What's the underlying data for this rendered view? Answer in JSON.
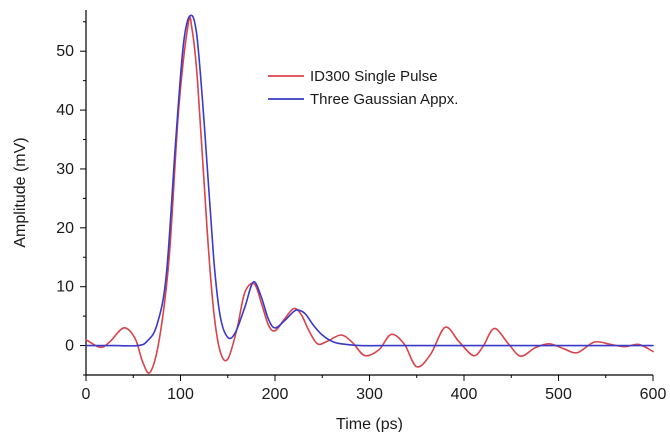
{
  "chart_data": {
    "type": "line",
    "xlabel": "Time (ps)",
    "ylabel": "Amplitude (mV)",
    "xlim": [
      0,
      600
    ],
    "ylim": [
      -5,
      57
    ],
    "x_ticks": [
      0,
      100,
      200,
      300,
      400,
      500,
      600
    ],
    "y_ticks": [
      0,
      10,
      20,
      30,
      40,
      50
    ],
    "grid": false,
    "legend_position": "top-right",
    "series": [
      {
        "name": "ID300 Single Pulse",
        "color": "#d9434b",
        "x": [
          0,
          15,
          25,
          40,
          52,
          60,
          68,
          78,
          88,
          98,
          108,
          112,
          118,
          128,
          135,
          142,
          150,
          160,
          168,
          178,
          186,
          193,
          200,
          210,
          220,
          228,
          236,
          245,
          255,
          270,
          282,
          295,
          310,
          323,
          337,
          350,
          365,
          380,
          395,
          410,
          420,
          432,
          447,
          460,
          475,
          490,
          505,
          520,
          538,
          555,
          570,
          585,
          600
        ],
        "y": [
          1,
          -0.3,
          0.6,
          3,
          1.2,
          -2.8,
          -4.5,
          1.5,
          15,
          40,
          54.5,
          54,
          45,
          20,
          6,
          -1,
          -2.3,
          3,
          9,
          10.5,
          7,
          3.5,
          2.5,
          4.5,
          6.3,
          5.2,
          2.5,
          0.3,
          0.7,
          1.8,
          0.5,
          -1.7,
          -0.7,
          1.9,
          0.2,
          -3.6,
          -1.4,
          3.1,
          0.6,
          -1.7,
          -0.2,
          2.9,
          0.3,
          -1.8,
          -0.4,
          0.3,
          -0.5,
          -1.2,
          0.6,
          0.2,
          -0.2,
          0.2,
          -1
        ]
      },
      {
        "name": "Three Gaussian Appx.",
        "color": "#3a3ac8",
        "x": [
          0,
          30,
          55,
          65,
          75,
          85,
          95,
          103,
          110,
          117,
          125,
          135,
          142,
          150,
          158,
          168,
          177,
          185,
          193,
          200,
          210,
          220,
          225,
          232,
          240,
          250,
          262,
          275,
          290,
          320,
          400,
          500,
          600
        ],
        "y": [
          0,
          0,
          0,
          0.8,
          3.5,
          12,
          35,
          51,
          56,
          53,
          38,
          15,
          5,
          1.4,
          2.2,
          6.5,
          10.8,
          8.5,
          4.5,
          3,
          4.2,
          5.8,
          6,
          5.4,
          3.6,
          1.8,
          0.6,
          0.2,
          0,
          0,
          0,
          0,
          0
        ]
      }
    ]
  }
}
